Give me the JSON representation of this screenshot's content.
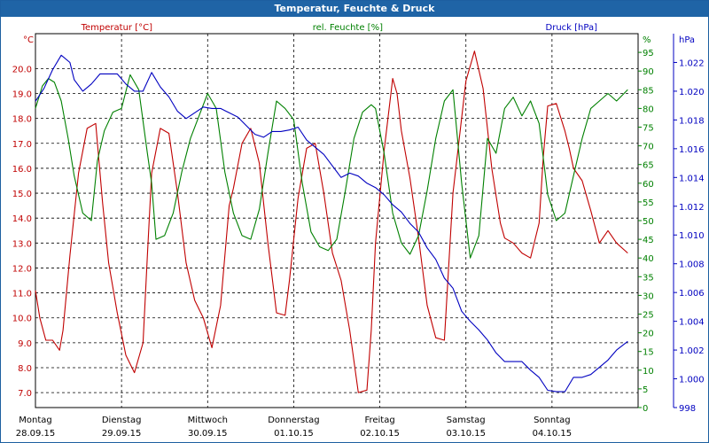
{
  "window": {
    "title": "Temperatur, Feuchte & Druck"
  },
  "colors": {
    "temperature": "#c00000",
    "humidity": "#008000",
    "pressure": "#0000c0",
    "titlebar": "#1f64a6",
    "grid": "#000000"
  },
  "chart_data": {
    "type": "line",
    "title": "Temperatur, Feuchte & Druck",
    "grid": true,
    "x_range": [
      0,
      7
    ],
    "days": [
      {
        "weekday": "Montag",
        "date": "28.09.15"
      },
      {
        "weekday": "Dienstag",
        "date": "29.09.15"
      },
      {
        "weekday": "Mittwoch",
        "date": "30.09.15"
      },
      {
        "weekday": "Donnerstag",
        "date": "01.10.15"
      },
      {
        "weekday": "Freitag",
        "date": "02.10.15"
      },
      {
        "weekday": "Samstag",
        "date": "03.10.15"
      },
      {
        "weekday": "Sonntag",
        "date": "04.10.15"
      }
    ],
    "axes": {
      "temperature": {
        "label": "Temperatur [°C]",
        "unit": "°C",
        "range": [
          6.4,
          21.4
        ],
        "ticks": [
          "7.0",
          "8.0",
          "9.0",
          "10.0",
          "11.0",
          "12.0",
          "13.0",
          "14.0",
          "15.0",
          "16.0",
          "17.0",
          "18.0",
          "19.0",
          "20.0"
        ]
      },
      "humidity": {
        "label": "rel. Feuchte [%]",
        "unit": "%",
        "range": [
          0,
          100
        ],
        "ticks": [
          "0",
          "5",
          "10",
          "15",
          "20",
          "25",
          "30",
          "35",
          "40",
          "45",
          "50",
          "55",
          "60",
          "65",
          "70",
          "75",
          "80",
          "85",
          "90",
          "95"
        ]
      },
      "pressure": {
        "label": "Druck [hPa]",
        "unit": "hPa",
        "range": [
          998,
          1024
        ],
        "ticks": [
          "998",
          "1.000",
          "1.002",
          "1.004",
          "1.006",
          "1.008",
          "1.010",
          "1.012",
          "1.014",
          "1.016",
          "1.018",
          "1.020",
          "1.022"
        ]
      }
    },
    "series": [
      {
        "name": "Temperatur [°C]",
        "axis": "temperature",
        "x": [
          0,
          0.05,
          0.12,
          0.2,
          0.28,
          0.32,
          0.4,
          0.5,
          0.6,
          0.7,
          0.78,
          0.85,
          0.95,
          1.05,
          1.15,
          1.25,
          1.3,
          1.35,
          1.45,
          1.55,
          1.65,
          1.75,
          1.85,
          1.95,
          2.05,
          2.15,
          2.25,
          2.3,
          2.4,
          2.5,
          2.6,
          2.7,
          2.8,
          2.9,
          2.95,
          3.05,
          3.15,
          3.25,
          3.35,
          3.45,
          3.55,
          3.65,
          3.75,
          3.85,
          3.9,
          3.95,
          4.05,
          4.15,
          4.2,
          4.25,
          4.35,
          4.45,
          4.55,
          4.65,
          4.75,
          4.85,
          5,
          5.1,
          5.2,
          5.3,
          5.4,
          5.45,
          5.55,
          5.65,
          5.75,
          5.85,
          5.9,
          5.95,
          6.05,
          6.15,
          6.2,
          6.25,
          6.35,
          6.45,
          6.55,
          6.65,
          6.75,
          6.88
        ],
        "values": [
          11.1,
          10,
          9.1,
          9.1,
          8.7,
          9.5,
          12.5,
          15.8,
          17.6,
          17.8,
          14.6,
          12.2,
          10.2,
          8.5,
          7.8,
          9,
          12.5,
          15.8,
          17.6,
          17.4,
          15,
          12.2,
          10.7,
          10,
          8.8,
          10.5,
          14.5,
          15.2,
          17,
          17.6,
          16.2,
          13,
          10.2,
          10.1,
          11.5,
          14.8,
          16.8,
          17,
          15,
          12.6,
          11.5,
          9.5,
          7,
          7.1,
          9.5,
          13,
          16.7,
          19.6,
          19,
          17.5,
          15.6,
          13.2,
          10.5,
          9.2,
          9.1,
          15,
          19.5,
          20.7,
          19.2,
          16,
          13.8,
          13.2,
          13,
          12.6,
          12.4,
          13.8,
          16.5,
          18.5,
          18.6,
          17.5,
          16.8,
          16,
          15.5,
          14.3,
          13,
          13.5,
          13,
          12.6
        ]
      },
      {
        "name": "rel. Feuchte [%]",
        "axis": "humidity",
        "x": [
          0,
          0.08,
          0.15,
          0.22,
          0.3,
          0.38,
          0.45,
          0.55,
          0.65,
          0.72,
          0.8,
          0.9,
          1,
          1.1,
          1.2,
          1.3,
          1.35,
          1.4,
          1.5,
          1.6,
          1.7,
          1.8,
          1.9,
          2,
          2.1,
          2.2,
          2.3,
          2.4,
          2.5,
          2.6,
          2.7,
          2.8,
          2.9,
          3,
          3.1,
          3.2,
          3.3,
          3.4,
          3.5,
          3.6,
          3.7,
          3.8,
          3.9,
          3.95,
          4.05,
          4.15,
          4.25,
          4.35,
          4.45,
          4.55,
          4.65,
          4.75,
          4.85,
          4.95,
          5.05,
          5.15,
          5.25,
          5.35,
          5.45,
          5.55,
          5.65,
          5.75,
          5.85,
          5.95,
          6.05,
          6.15,
          6.25,
          6.35,
          6.45,
          6.55,
          6.65,
          6.75,
          6.88
        ],
        "values": [
          80,
          86,
          88,
          87,
          82,
          72,
          62,
          52,
          50,
          66,
          74,
          79,
          80,
          89,
          85,
          68,
          60,
          45,
          46,
          52,
          63,
          72,
          78,
          84,
          80,
          63,
          52,
          46,
          45,
          53,
          68,
          82,
          80,
          77,
          60,
          47,
          43,
          42,
          45,
          58,
          72,
          79,
          81,
          80,
          68,
          52,
          44,
          41,
          46,
          58,
          72,
          82,
          85,
          60,
          40,
          46,
          72,
          68,
          80,
          83,
          78,
          82,
          76,
          57,
          50,
          52,
          62,
          72,
          80,
          82,
          84,
          82,
          85
        ]
      },
      {
        "name": "Druck [hPa]",
        "axis": "pressure",
        "x": [
          0,
          0.1,
          0.2,
          0.3,
          0.4,
          0.45,
          0.55,
          0.65,
          0.75,
          0.85,
          0.95,
          1.05,
          1.15,
          1.25,
          1.35,
          1.45,
          1.55,
          1.65,
          1.75,
          1.85,
          1.95,
          2.05,
          2.15,
          2.25,
          2.35,
          2.45,
          2.55,
          2.65,
          2.75,
          2.85,
          2.95,
          3.05,
          3.15,
          3.25,
          3.35,
          3.45,
          3.55,
          3.65,
          3.75,
          3.85,
          3.95,
          4.05,
          4.15,
          4.25,
          4.35,
          4.45,
          4.55,
          4.65,
          4.75,
          4.85,
          4.95,
          5.05,
          5.15,
          5.25,
          5.35,
          5.45,
          5.55,
          5.65,
          5.75,
          5.85,
          5.95,
          6.05,
          6.15,
          6.25,
          6.35,
          6.45,
          6.55,
          6.65,
          6.75,
          6.88
        ],
        "values": [
          1019.3,
          1020.2,
          1021.5,
          1022.5,
          1022,
          1020.8,
          1020,
          1020.5,
          1021.2,
          1021.2,
          1021.2,
          1020.5,
          1020,
          1020,
          1021.3,
          1020.3,
          1019.6,
          1018.6,
          1018.1,
          1018.5,
          1018.9,
          1018.8,
          1018.8,
          1018.5,
          1018.2,
          1017.6,
          1017,
          1016.8,
          1017.2,
          1017.2,
          1017.3,
          1017.5,
          1016.6,
          1016.1,
          1015.6,
          1014.8,
          1014,
          1014.3,
          1014.1,
          1013.6,
          1013.3,
          1012.8,
          1012.1,
          1011.6,
          1010.8,
          1010.2,
          1009.1,
          1008.3,
          1007,
          1006.3,
          1004.7,
          1004,
          1003.4,
          1002.7,
          1001.8,
          1001.2,
          1001.2,
          1001.2,
          1000.6,
          1000.1,
          999.2,
          999.1,
          999.1,
          1000.1,
          1000.1,
          1000.3,
          1000.8,
          1001.3,
          1002,
          1002.6
        ]
      }
    ]
  }
}
